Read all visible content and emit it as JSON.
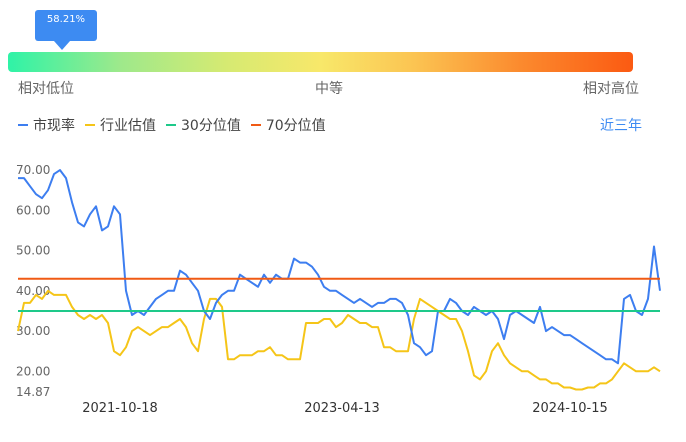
{
  "percentile": {
    "badge": "58.21%",
    "low_label": "相对低位",
    "mid_label": "中等",
    "high_label": "相对高位"
  },
  "legend": {
    "items": [
      {
        "label": "市现率",
        "color": "#3d7ef0"
      },
      {
        "label": "行业估值",
        "color": "#f5c518"
      },
      {
        "label": "30分位值",
        "color": "#1ec98a"
      },
      {
        "label": "70分位值",
        "color": "#f05a14"
      }
    ],
    "period": "近三年"
  },
  "chart_data": {
    "type": "line",
    "ylim": [
      14.87,
      72
    ],
    "y_ticks": [
      "70.00",
      "60.00",
      "50.00",
      "40.00",
      "30.00",
      "20.00",
      "14.87"
    ],
    "y_tick_values": [
      70,
      60,
      50,
      40,
      30,
      20,
      14.87
    ],
    "x_ticks": [
      "2021-10-18",
      "2023-04-13",
      "2024-10-15"
    ],
    "x_tick_index": [
      17,
      54,
      92
    ],
    "x_count": 108,
    "series": [
      {
        "name": "市现率",
        "color": "#3d7ef0",
        "values": [
          68,
          68,
          66,
          64,
          63,
          65,
          69,
          70,
          68,
          62,
          57,
          56,
          59,
          61,
          55,
          56,
          61,
          59,
          40,
          34,
          35,
          34,
          36,
          38,
          39,
          40,
          40,
          45,
          44,
          42,
          40,
          35,
          33,
          37,
          39,
          40,
          40,
          44,
          43,
          42,
          41,
          44,
          42,
          44,
          43,
          43,
          48,
          47,
          47,
          46,
          44,
          41,
          40,
          40,
          39,
          38,
          37,
          38,
          37,
          36,
          37,
          37,
          38,
          38,
          37,
          34,
          27,
          26,
          24,
          25,
          35,
          35,
          38,
          37,
          35,
          34,
          36,
          35,
          34,
          35,
          33,
          28,
          34,
          35,
          34,
          33,
          32,
          36,
          30,
          31,
          30,
          29,
          29,
          28,
          27,
          26,
          25,
          24,
          23,
          23,
          22,
          38,
          39,
          35,
          34,
          38,
          51,
          40
        ]
      },
      {
        "name": "行业估值",
        "color": "#f5c518",
        "values": [
          30,
          37,
          37,
          39,
          38,
          40,
          39,
          39,
          39,
          36,
          34,
          33,
          34,
          33,
          34,
          32,
          25,
          24,
          26,
          30,
          31,
          30,
          29,
          30,
          31,
          31,
          32,
          33,
          31,
          27,
          25,
          33,
          38,
          38,
          36,
          23,
          23,
          24,
          24,
          24,
          25,
          25,
          26,
          24,
          24,
          23,
          23,
          23,
          32,
          32,
          32,
          33,
          33,
          31,
          32,
          34,
          33,
          32,
          32,
          31,
          31,
          26,
          26,
          25,
          25,
          25,
          33,
          38,
          37,
          36,
          35,
          34,
          33,
          33,
          30,
          25,
          19,
          18,
          20,
          25,
          27,
          24,
          22,
          21,
          20,
          20,
          19,
          18,
          18,
          17,
          17,
          16,
          16,
          15.5,
          15.5,
          16,
          16,
          17,
          17,
          18,
          20,
          22,
          21,
          20,
          20,
          20,
          21,
          20
        ]
      },
      {
        "name": "30分位值",
        "color": "#1ec98a",
        "values": [
          35,
          35
        ]
      },
      {
        "name": "70分位值",
        "color": "#f05a14",
        "values": [
          43,
          43
        ]
      }
    ]
  }
}
